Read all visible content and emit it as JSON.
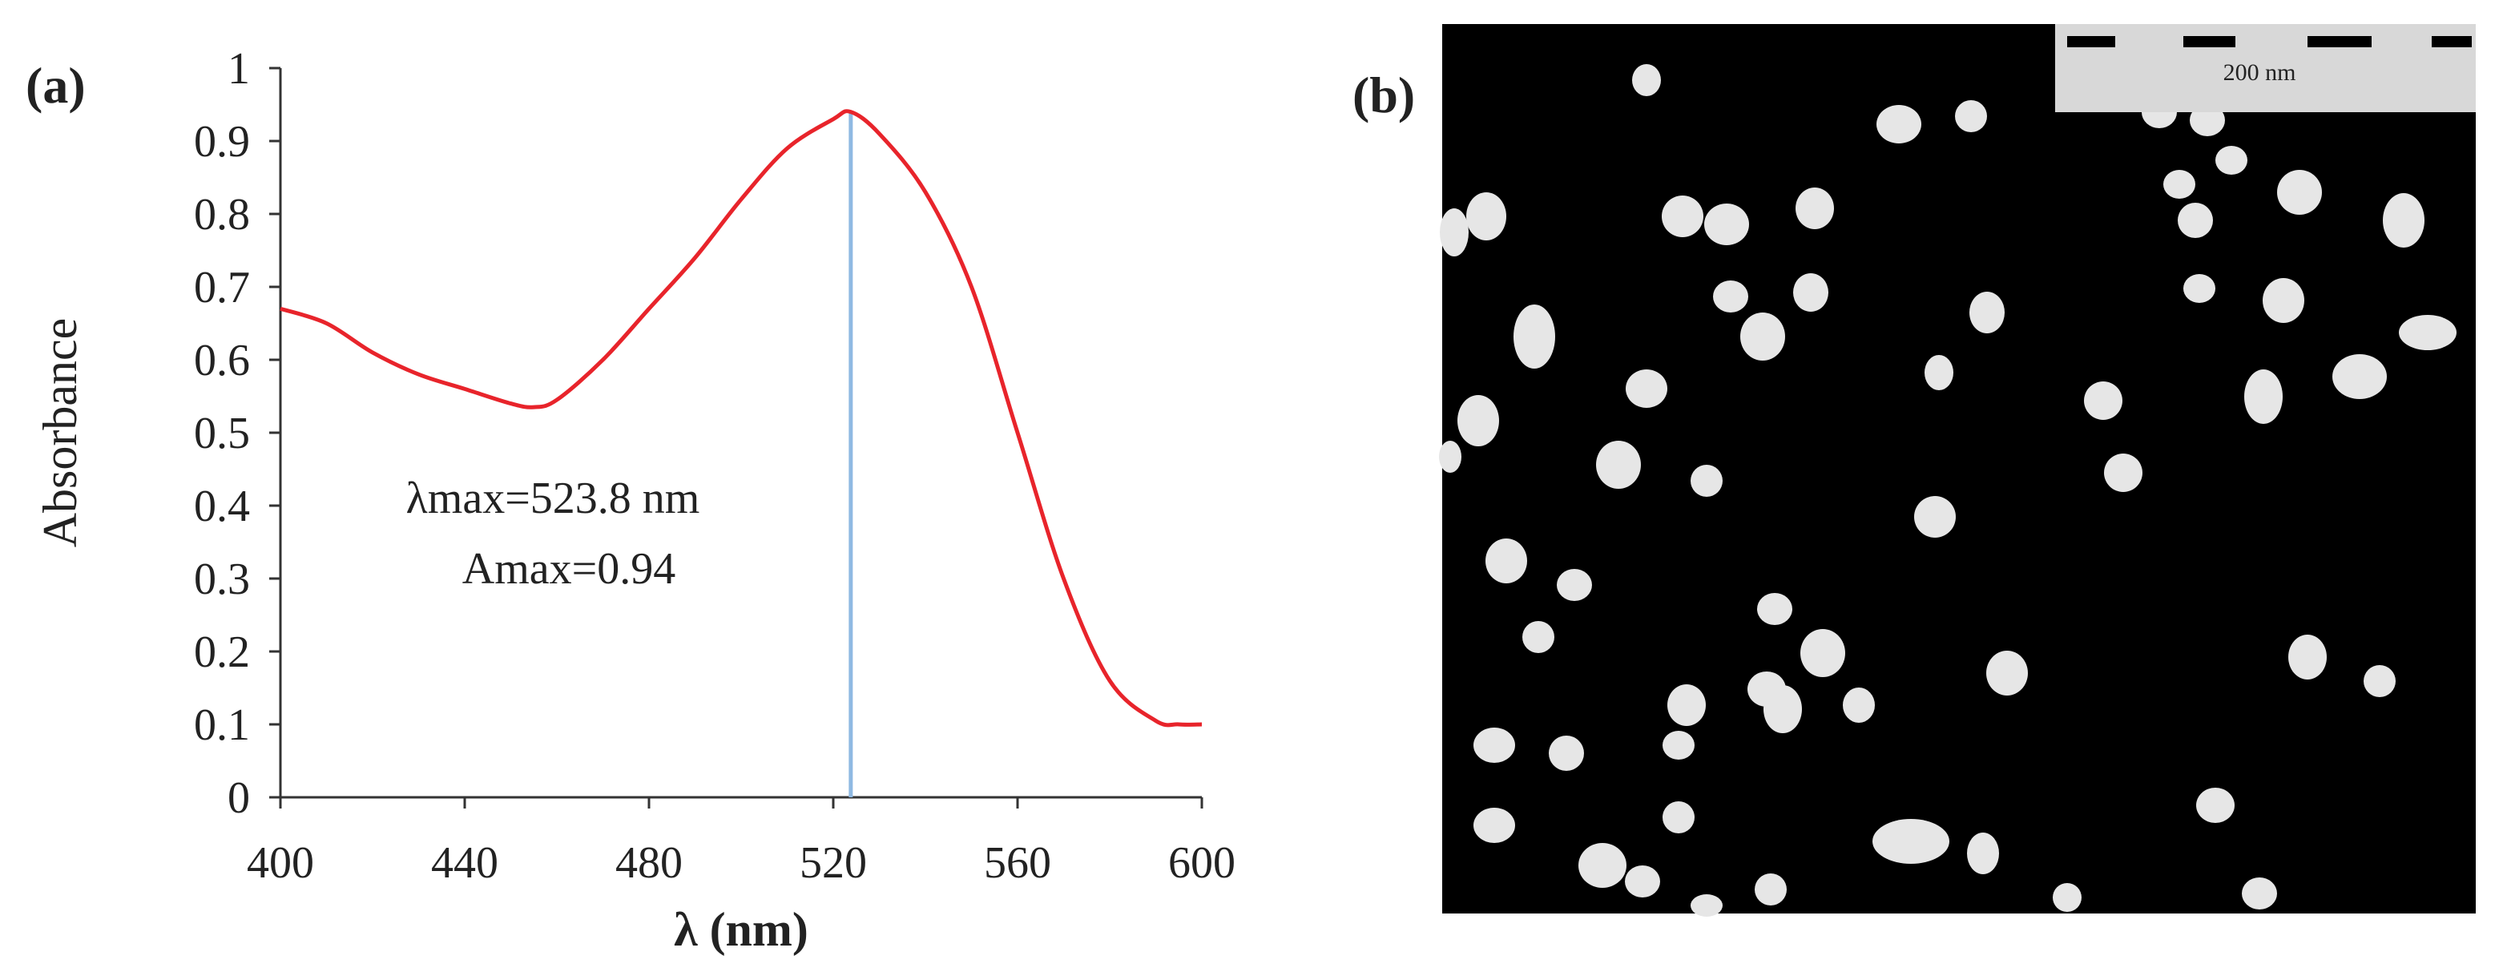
{
  "panel_a": {
    "label": "(a)"
  },
  "panel_b": {
    "label": "(b)",
    "scale_bar_label": "200 nm"
  },
  "chart_data": {
    "type": "line",
    "title": "",
    "xlabel": "λ (nm)",
    "ylabel": "Absorbance",
    "xlim": [
      400,
      600
    ],
    "ylim": [
      0,
      1
    ],
    "xticks": [
      "400",
      "440",
      "480",
      "520",
      "560",
      "600"
    ],
    "yticks": [
      "0",
      "0.1",
      "0.2",
      "0.3",
      "0.4",
      "0.5",
      "0.6",
      "0.7",
      "0.8",
      "0.9",
      "1"
    ],
    "grid": false,
    "legend": "none",
    "series": [
      {
        "color": "#e8242b",
        "x": [
          400,
          410,
          420,
          430,
          440,
          450,
          455,
          460,
          470,
          480,
          490,
          500,
          510,
          520,
          523.8,
          530,
          540,
          550,
          560,
          570,
          580,
          590,
          595,
          600
        ],
        "y": [
          0.67,
          0.65,
          0.61,
          0.58,
          0.56,
          0.54,
          0.535,
          0.545,
          0.6,
          0.67,
          0.74,
          0.82,
          0.89,
          0.93,
          0.94,
          0.91,
          0.83,
          0.7,
          0.5,
          0.3,
          0.16,
          0.105,
          0.1,
          0.1
        ]
      }
    ],
    "annotations": [
      {
        "type": "vertical_line",
        "x": 523.8,
        "color": "#8fb9e2"
      },
      {
        "type": "text",
        "lines": [
          "λmax=523.8 nm",
          "Amax=0.94"
        ]
      }
    ]
  },
  "micrograph": {
    "background": "#000000",
    "particle_color": "#e6e6e6",
    "scale_bar_bg": "#d8d8d8"
  }
}
